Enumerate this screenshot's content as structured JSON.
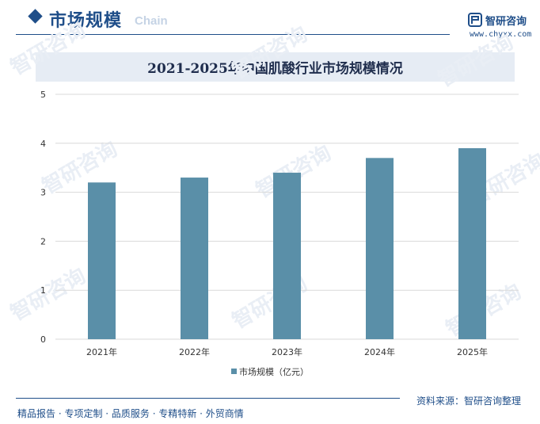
{
  "header": {
    "section_title": "市场规模",
    "section_subtitle": "Chain",
    "brand_name": "智研咨询",
    "brand_url": "www.chyxx.com"
  },
  "footer": {
    "left_text": "精品报告 · 专项定制 · 品质服务 · 专精特新 · 外贸商情",
    "source_text": "资料来源：智研咨询整理"
  },
  "watermark_text": "智研咨询",
  "colors": {
    "brand": "#1f4e89",
    "bar": "#5a8fa8",
    "title_bg": "#e6ecf4",
    "grid": "#d9d9d9"
  },
  "chart_data": {
    "type": "bar",
    "title": "2021-2025年中国肌酸行业市场规模情况",
    "categories": [
      "2021年",
      "2022年",
      "2023年",
      "2024年",
      "2025年"
    ],
    "series": [
      {
        "name": "市场规模（亿元）",
        "values": [
          3.2,
          3.3,
          3.4,
          3.7,
          3.9
        ]
      }
    ],
    "ylim": [
      0,
      5
    ],
    "yticks": [
      0,
      1,
      2,
      3,
      4,
      5
    ],
    "xlabel": "",
    "ylabel": "",
    "grid": true,
    "legend_position": "bottom"
  }
}
